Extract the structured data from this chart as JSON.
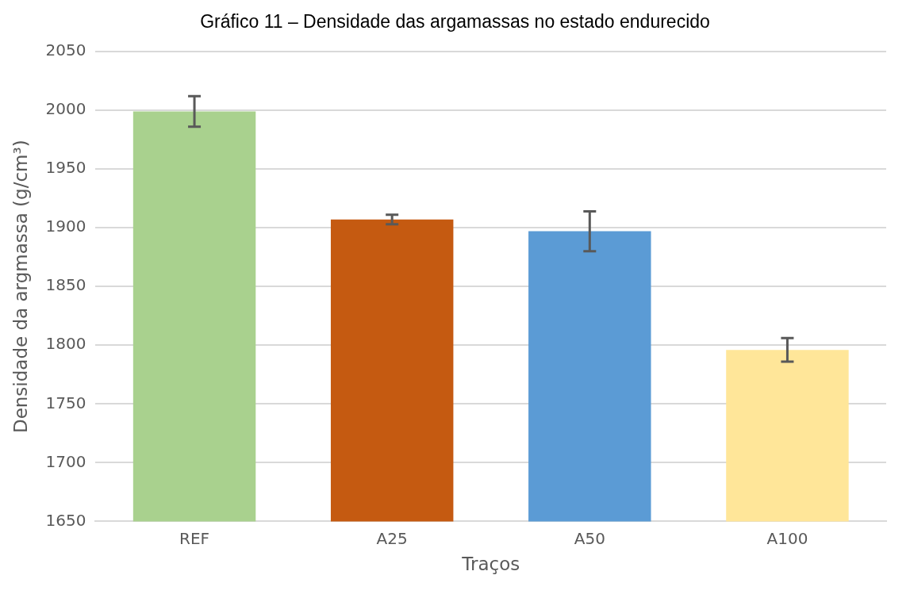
{
  "chart_data": {
    "type": "bar",
    "title": "Gráfico 11 – Densidade das argamassas no estado endurecido",
    "xlabel": "Traços",
    "ylabel": "Densidade da argmassa (g/cm³)",
    "categories": [
      "REF",
      "A25",
      "A50",
      "A100"
    ],
    "values": [
      1999,
      1907,
      1897,
      1796
    ],
    "errors": [
      13,
      4,
      17,
      10
    ],
    "colors": [
      "#a9d18e",
      "#c55a11",
      "#5b9bd5",
      "#ffe699"
    ],
    "ylim": [
      1650,
      2050
    ],
    "yticks": [
      1650,
      1700,
      1750,
      1800,
      1850,
      1900,
      1950,
      2000,
      2050
    ],
    "grid": "y"
  }
}
